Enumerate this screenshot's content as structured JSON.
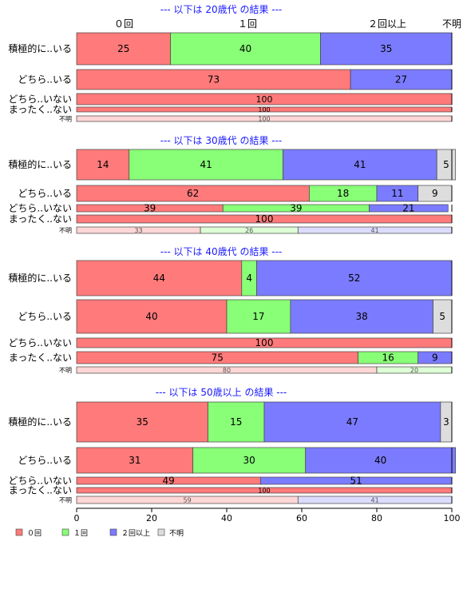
{
  "chart_data": {
    "type": "bar",
    "orientation": "horizontal",
    "stacked": "percent",
    "series_names": [
      "０回",
      "１回",
      "２回以上",
      "不明"
    ],
    "colors": [
      "#ff7a7a",
      "#88ff77",
      "#7b7bff",
      "#dddddd"
    ],
    "light_colors": [
      "#ffd6d6",
      "#ddffd6",
      "#dcdcff",
      "#f2f2f2"
    ],
    "top_labels": [
      "０回",
      "１回",
      "２回以上",
      "不明"
    ],
    "xlim": [
      0,
      100
    ],
    "xticks": [
      "0",
      "20",
      "40",
      "60",
      "80",
      "100"
    ],
    "panels": [
      {
        "title": "--- 以下は 20歳代 の結果 ---",
        "rows": [
          {
            "label": "積極的に..いる",
            "values": [
              25,
              40,
              35,
              0
            ]
          },
          {
            "label": "どちら..いる",
            "values": [
              73,
              0,
              27,
              0
            ]
          },
          {
            "label": "どちら..いない",
            "values": [
              100,
              0,
              0,
              0
            ]
          },
          {
            "label": "まったく..ない",
            "values": [
              100,
              0,
              0,
              0
            ]
          },
          {
            "label": "不明",
            "values": [
              100,
              0,
              0,
              0
            ]
          }
        ]
      },
      {
        "title": "--- 以下は 30歳代 の結果 ---",
        "rows": [
          {
            "label": "積極的に..いる",
            "values": [
              14,
              41,
              41,
              5
            ]
          },
          {
            "label": "どちら..いる",
            "values": [
              62,
              18,
              11,
              9
            ]
          },
          {
            "label": "どちら..いない",
            "values": [
              39,
              39,
              21,
              0
            ]
          },
          {
            "label": "まったく..ない",
            "values": [
              100,
              0,
              0,
              0
            ]
          },
          {
            "label": "不明",
            "values": [
              33,
              26,
              41,
              0
            ]
          }
        ]
      },
      {
        "title": "--- 以下は 40歳代 の結果 ---",
        "rows": [
          {
            "label": "積極的に..いる",
            "values": [
              44,
              4,
              52,
              0
            ]
          },
          {
            "label": "どちら..いる",
            "values": [
              40,
              17,
              38,
              5
            ]
          },
          {
            "label": "どちら..いない",
            "values": [
              100,
              0,
              0,
              0
            ]
          },
          {
            "label": "まったく..ない",
            "values": [
              75,
              16,
              9,
              0
            ]
          },
          {
            "label": "不明",
            "values": [
              80,
              20,
              0,
              0
            ]
          }
        ]
      },
      {
        "title": "--- 以下は 50歳以上 の結果 ---",
        "rows": [
          {
            "label": "積極的に..いる",
            "values": [
              35,
              15,
              47,
              3
            ]
          },
          {
            "label": "どちら..いる",
            "values": [
              31,
              30,
              40,
              0
            ]
          },
          {
            "label": "どちら..いない",
            "values": [
              49,
              0,
              51,
              0
            ]
          },
          {
            "label": "まったく..ない",
            "values": [
              100,
              0,
              0,
              0
            ]
          },
          {
            "label": "不明",
            "values": [
              59,
              0,
              41,
              0
            ]
          }
        ]
      }
    ]
  }
}
